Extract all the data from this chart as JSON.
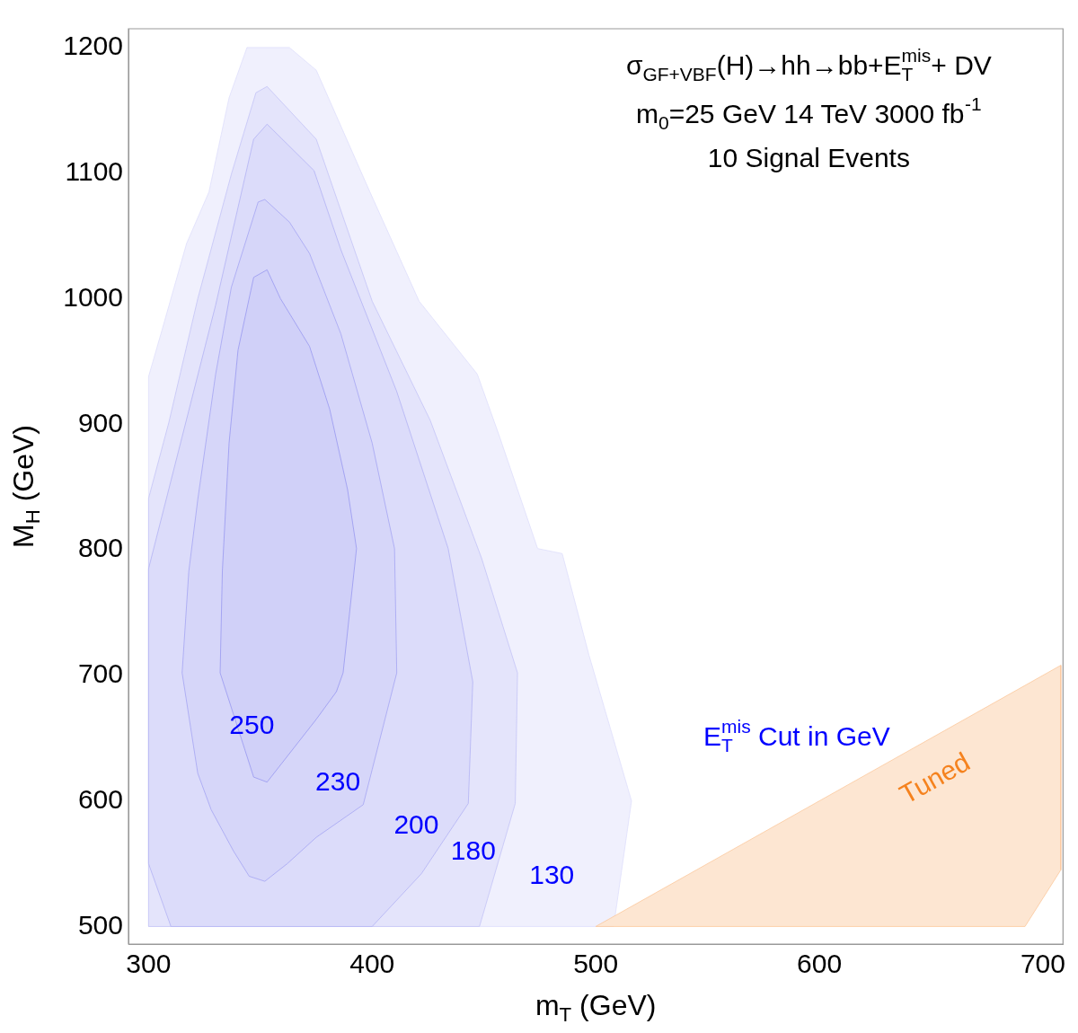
{
  "chart_data": {
    "type": "area",
    "xlabel": "m$_{T}$ (GeV)",
    "ylabel": "M$_{H}$ (GeV)",
    "xlim": [
      291,
      709
    ],
    "xticks": [
      300,
      400,
      500,
      600,
      700
    ],
    "ylim": [
      486,
      1215
    ],
    "yticks": [
      500,
      600,
      700,
      800,
      900,
      1000,
      1100,
      1200
    ],
    "series": [
      {
        "color": "#f0f0fd",
        "x": [
          300,
          300,
          306,
          317,
          327,
          336,
          344,
          363,
          375,
          399,
          421,
          447,
          457,
          474,
          485,
          497,
          516,
          508
        ],
        "values": [
          500,
          938,
          975,
          1044,
          1085,
          1160,
          1200,
          1200,
          1182,
          1085,
          998,
          940,
          890,
          801,
          797,
          716,
          600,
          500
        ]
      },
      {
        "color": "#e4e4fb",
        "x": [
          300,
          300,
          309,
          322,
          337,
          348,
          353,
          375,
          400,
          426,
          449,
          465,
          464,
          448
        ],
        "values": [
          500,
          841,
          901,
          1000,
          1099,
          1164,
          1169,
          1127,
          998,
          903,
          793,
          702,
          598,
          500
        ]
      },
      {
        "color": "#dcdcfa",
        "x": [
          310,
          300,
          300,
          315,
          330,
          347,
          353,
          374,
          386,
          411,
          434,
          445,
          443,
          437,
          422,
          400
        ],
        "values": [
          500,
          550,
          785,
          890,
          995,
          1127,
          1139,
          1102,
          1039,
          926,
          801,
          695,
          598,
          582,
          542,
          500
        ]
      },
      {
        "color": "#d6d6f9",
        "x": [
          315,
          318,
          322,
          330,
          337,
          349,
          352,
          363,
          372,
          386,
          400,
          410,
          411,
          400,
          396,
          375,
          362,
          352,
          345,
          338,
          328,
          322
        ],
        "values": [
          702,
          783,
          840,
          940,
          1009,
          1077,
          1079,
          1061,
          1036,
          972,
          885,
          801,
          702,
          625,
          597,
          571,
          550,
          536,
          540,
          560,
          593,
          622
        ]
      },
      {
        "color": "#d0d0f8",
        "x": [
          332,
          333,
          336,
          340,
          347,
          353,
          359,
          372,
          381,
          389,
          393,
          387,
          384,
          375,
          353,
          347
        ],
        "values": [
          702,
          783,
          885,
          959,
          1017,
          1023,
          1000,
          962,
          912,
          848,
          801,
          702,
          687,
          665,
          615,
          619
        ]
      },
      {
        "name": "Tuned",
        "color": "#fde6d2",
        "x": [
          500,
          708,
          708,
          692
        ],
        "values": [
          500,
          708,
          545,
          500
        ]
      }
    ],
    "annotations": [
      "σ$_{GF+VBF}$(H)→hh→bb+E$_{T}$$^{mis}$+ DV",
      "m$_{0}$=25 GeV 14 TeV 3000 fb$^{-1}$",
      "10 Signal Events",
      "E$_{T}$$^{mis}$ Cut in GeV",
      "250",
      "230",
      "200",
      "180",
      "130"
    ]
  }
}
